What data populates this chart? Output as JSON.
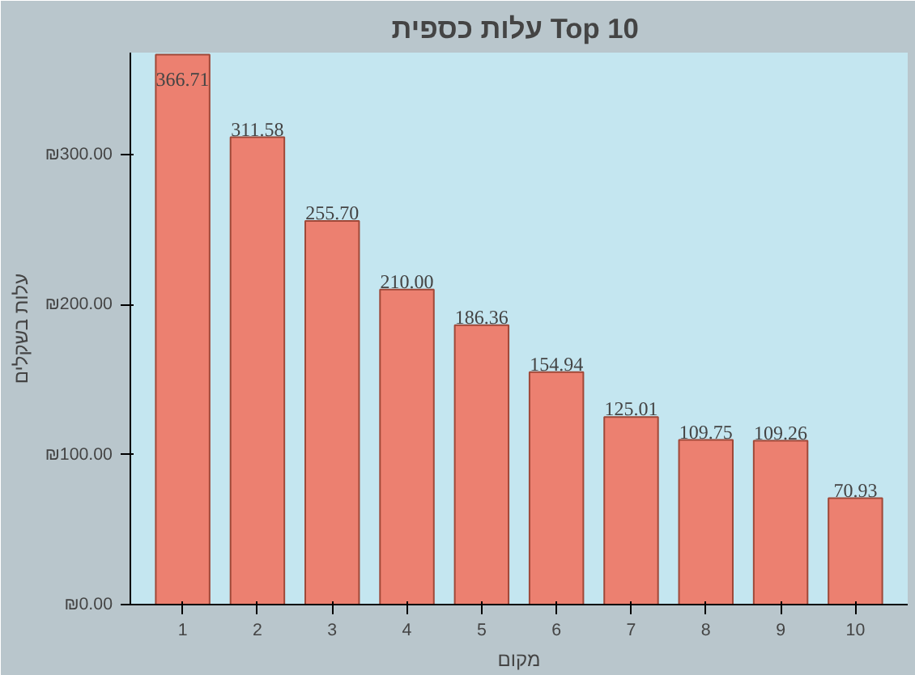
{
  "chart_data": {
    "type": "bar",
    "title": "עלות  כספית Top 10",
    "xlabel": "מקום",
    "ylabel": "עלות בשקלים",
    "categories": [
      "1",
      "2",
      "3",
      "4",
      "5",
      "6",
      "7",
      "8",
      "9",
      "10"
    ],
    "values": [
      366.71,
      311.58,
      255.7,
      210.0,
      186.36,
      154.94,
      125.01,
      109.75,
      109.26,
      70.93
    ],
    "value_labels": [
      "366.71",
      "311.58",
      "255.70",
      "210.00",
      "186.36",
      "154.94",
      "125.01",
      "109.75",
      "109.26",
      "70.93"
    ],
    "color": "#ec8070",
    "ylim": [
      0,
      368
    ],
    "yticks": [
      {
        "value": 0,
        "label": "₪0.00"
      },
      {
        "value": 100,
        "label": "₪100.00"
      },
      {
        "value": 200,
        "label": "₪200.00"
      },
      {
        "value": 300,
        "label": "₪300.00"
      }
    ],
    "grid": false
  }
}
